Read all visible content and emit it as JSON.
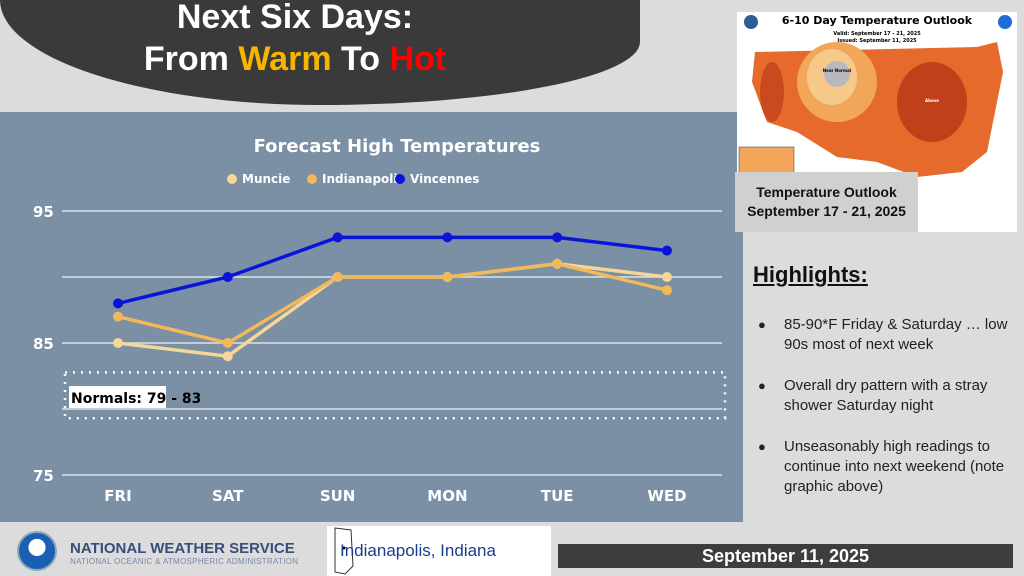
{
  "header": {
    "line1": "Next Six Days:",
    "line2_pre": "From ",
    "warm": "Warm",
    "mid": " To ",
    "hot": "Hot"
  },
  "chart_data": {
    "type": "line",
    "title": "Forecast High Temperatures",
    "categories": [
      "FRI",
      "SAT",
      "SUN",
      "MON",
      "TUE",
      "WED"
    ],
    "series": [
      {
        "name": "Muncie",
        "color": "#f5d79a",
        "values": [
          85,
          84,
          90,
          90,
          91,
          90
        ]
      },
      {
        "name": "Indianapolis",
        "color": "#f2b95a",
        "values": [
          87,
          85,
          90,
          90,
          91,
          89
        ]
      },
      {
        "name": "Vincennes",
        "color": "#0a14d8",
        "values": [
          88,
          90,
          93,
          93,
          93,
          92
        ]
      }
    ],
    "yticks": [
      75,
      85,
      95
    ],
    "ylim": [
      75,
      95
    ],
    "grid": true,
    "legend": "top",
    "annotation": {
      "label": "Normals: 79 - 83",
      "range": [
        79,
        83
      ]
    }
  },
  "outlook": {
    "map_title": "6-10 Day Temperature Outlook",
    "valid": "Valid: September 17 - 21, 2025",
    "issued": "Issued: September 11, 2025",
    "near_normal": "Near Normal",
    "above": "Above",
    "caption1": "Temperature Outlook",
    "caption2": "September 17 - 21, 2025"
  },
  "highlights": {
    "title": "Highlights:",
    "items": [
      "85-90*F Friday & Saturday … low 90s most of next week",
      "Overall dry pattern with a stray shower Saturday night",
      "Unseasonably high readings to continue into next weekend (note graphic above)"
    ]
  },
  "footer": {
    "agency": "NATIONAL WEATHER SERVICE",
    "sub": "NATIONAL OCEANIC & ATMOSPHERIC ADMINISTRATION",
    "office": "Indianapolis, Indiana",
    "date": "September 11, 2025"
  }
}
